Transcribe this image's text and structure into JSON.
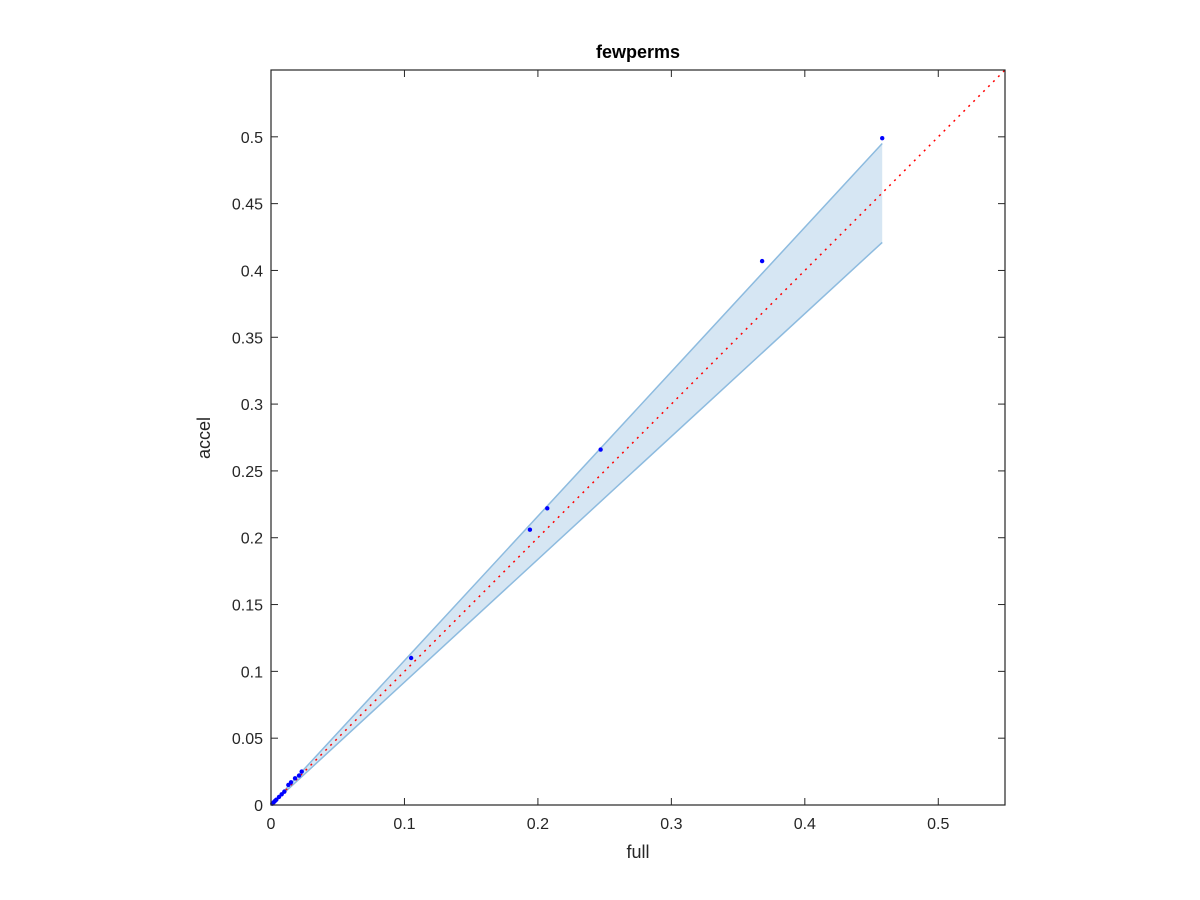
{
  "chart_data": {
    "type": "scatter",
    "title": "fewperms",
    "xlabel": "full",
    "ylabel": "accel",
    "xlim": [
      0,
      0.55
    ],
    "ylim": [
      0,
      0.55
    ],
    "x_ticks": [
      0,
      0.1,
      0.2,
      0.3,
      0.4,
      0.5
    ],
    "x_tick_labels": [
      "0",
      "0.1",
      "0.2",
      "0.3",
      "0.4",
      "0.5"
    ],
    "y_ticks": [
      0,
      0.05,
      0.1,
      0.15,
      0.2,
      0.25,
      0.3,
      0.35,
      0.4,
      0.45,
      0.5
    ],
    "y_tick_labels": [
      "0",
      "0.05",
      "0.1",
      "0.15",
      "0.2",
      "0.25",
      "0.3",
      "0.35",
      "0.4",
      "0.45",
      "0.5"
    ],
    "grid": false,
    "points": {
      "x": [
        0.001,
        0.002,
        0.003,
        0.004,
        0.006,
        0.008,
        0.01,
        0.013,
        0.015,
        0.018,
        0.021,
        0.023,
        0.105,
        0.194,
        0.207,
        0.247,
        0.368,
        0.458
      ],
      "y": [
        0.001,
        0.002,
        0.003,
        0.004,
        0.006,
        0.008,
        0.01,
        0.015,
        0.017,
        0.02,
        0.022,
        0.025,
        0.11,
        0.206,
        0.222,
        0.266,
        0.407,
        0.499
      ]
    },
    "reference_line": {
      "x": [
        0,
        0.55
      ],
      "y": [
        0,
        0.55
      ],
      "style": "dotted"
    },
    "band": {
      "x": [
        0,
        0.458
      ],
      "upper": [
        0,
        0.495
      ],
      "lower": [
        0,
        0.421
      ]
    },
    "colors": {
      "points": "#0000ff",
      "reference_line": "#ff0000",
      "band_fill": "#d6e6f3",
      "band_edge": "#8dbbdf",
      "axes": "#262626"
    }
  }
}
